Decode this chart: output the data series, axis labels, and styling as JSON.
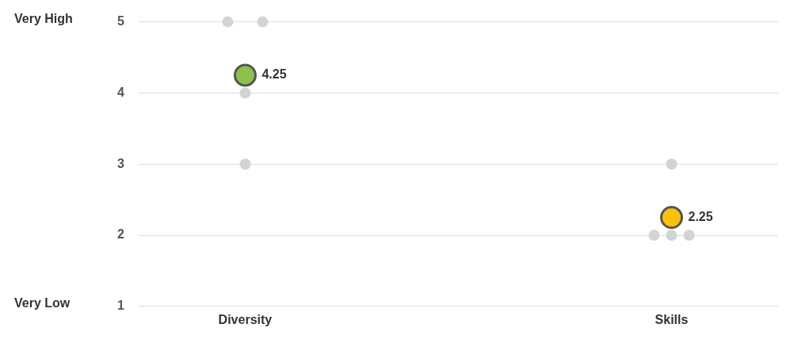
{
  "chart_data": {
    "type": "scatter",
    "categories": [
      "Diversity",
      "Skills"
    ],
    "series": [
      {
        "color": "#d3d3d3",
        "x": [
          "Diversity",
          "Diversity",
          "Diversity",
          "Diversity",
          "Skills",
          "Skills",
          "Skills",
          "Skills"
        ],
        "values": [
          5,
          5,
          4,
          3,
          3,
          2,
          2,
          2
        ]
      },
      {
        "colors": [
          "#8bc34a",
          "#ffc107"
        ],
        "x": [
          "Diversity",
          "Skills"
        ],
        "values": [
          4.25,
          2.25
        ],
        "value_labels": [
          "4.25",
          "2.25"
        ]
      }
    ],
    "ylim": [
      1,
      5
    ],
    "yticks": [
      1,
      2,
      3,
      4,
      5
    ],
    "grid": "y",
    "legend": false,
    "marker": "circle",
    "annotations": [
      "Very High",
      "Very Low"
    ]
  }
}
